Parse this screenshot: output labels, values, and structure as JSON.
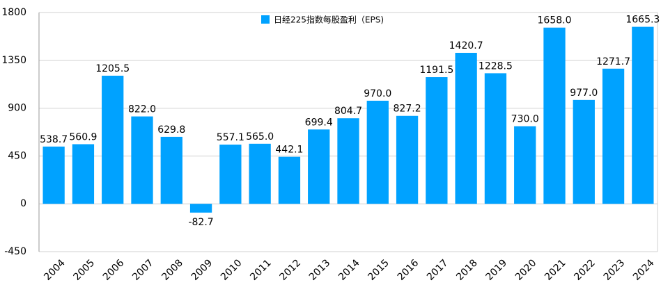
{
  "chart_data": {
    "type": "bar",
    "legend": "日经225指数每股盈利（EPS)",
    "categories": [
      "2004",
      "2005",
      "2006",
      "2007",
      "2008",
      "2009",
      "2010",
      "2011",
      "2012",
      "2013",
      "2014",
      "2015",
      "2016",
      "2017",
      "2018",
      "2019",
      "2020",
      "2021",
      "2022",
      "2023",
      "2024"
    ],
    "values": [
      538.7,
      560.9,
      1205.5,
      822.0,
      629.8,
      -82.7,
      557.1,
      565.0,
      442.1,
      699.4,
      804.7,
      970.0,
      827.2,
      1191.5,
      1420.7,
      1228.5,
      730.0,
      1658.0,
      977.0,
      1271.7,
      1665.3
    ],
    "value_labels": [
      "538.7",
      "560.9",
      "1205.5",
      "822.0",
      "629.8",
      "-82.7",
      "557.1",
      "565.0",
      "442.1",
      "699.4",
      "804.7",
      "970.0",
      "827.2",
      "1191.5",
      "1420.7",
      "1228.5",
      "730.0",
      "1658.0",
      "977.0",
      "1271.7",
      "1665.3"
    ],
    "color": "#00a2ff",
    "ylim": [
      -450,
      1800
    ],
    "yticks": [
      -450,
      0,
      450,
      900,
      1350,
      1800
    ],
    "grid": true
  }
}
